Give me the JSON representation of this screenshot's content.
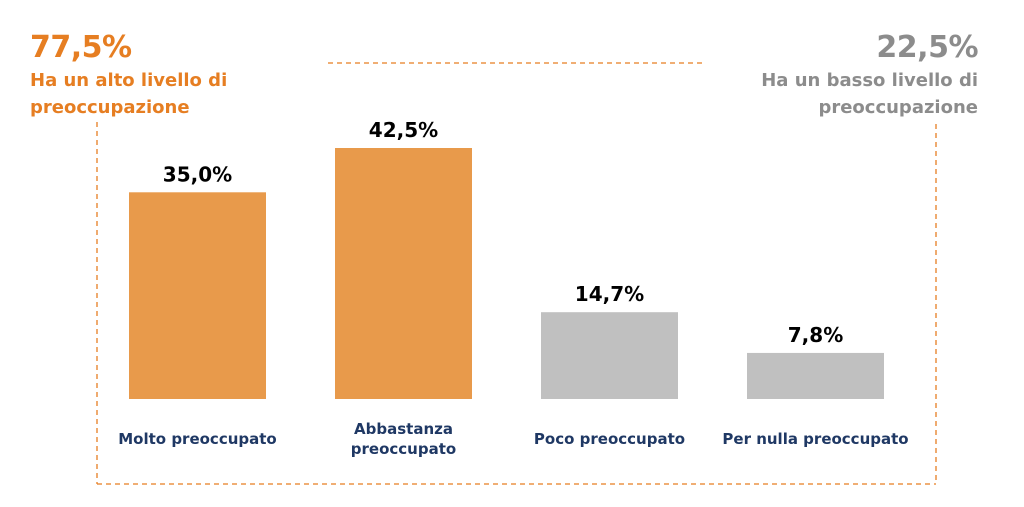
{
  "summary": {
    "high": {
      "value": "77,5%",
      "label_line1": "Ha un alto livello di",
      "label_line2": "preoccupazione",
      "color": "#E67E22"
    },
    "low": {
      "value": "22,5%",
      "label_line1": "Ha un basso livello di",
      "label_line2": "preoccupazione",
      "color": "#8C8C8C"
    }
  },
  "chart_data": {
    "type": "bar",
    "categories": [
      "Molto preoccupato",
      "Abbastanza preoccupato",
      "Poco preoccupato",
      "Per nulla preoccupato"
    ],
    "category_lines": [
      [
        "Molto preoccupato"
      ],
      [
        "Abbastanza",
        "preoccupato"
      ],
      [
        "Poco preoccupato"
      ],
      [
        "Per nulla preoccupato"
      ]
    ],
    "values": [
      35.0,
      42.5,
      14.7,
      7.8
    ],
    "value_labels": [
      "35,0%",
      "42,5%",
      "14,7%",
      "7,8%"
    ],
    "bar_colors": [
      "#E89A4B",
      "#E89A4B",
      "#C0C0C0",
      "#C0C0C0"
    ],
    "category_label_color": "#1F3864",
    "accent_dash_color": "#E67E22",
    "grid": false
  }
}
